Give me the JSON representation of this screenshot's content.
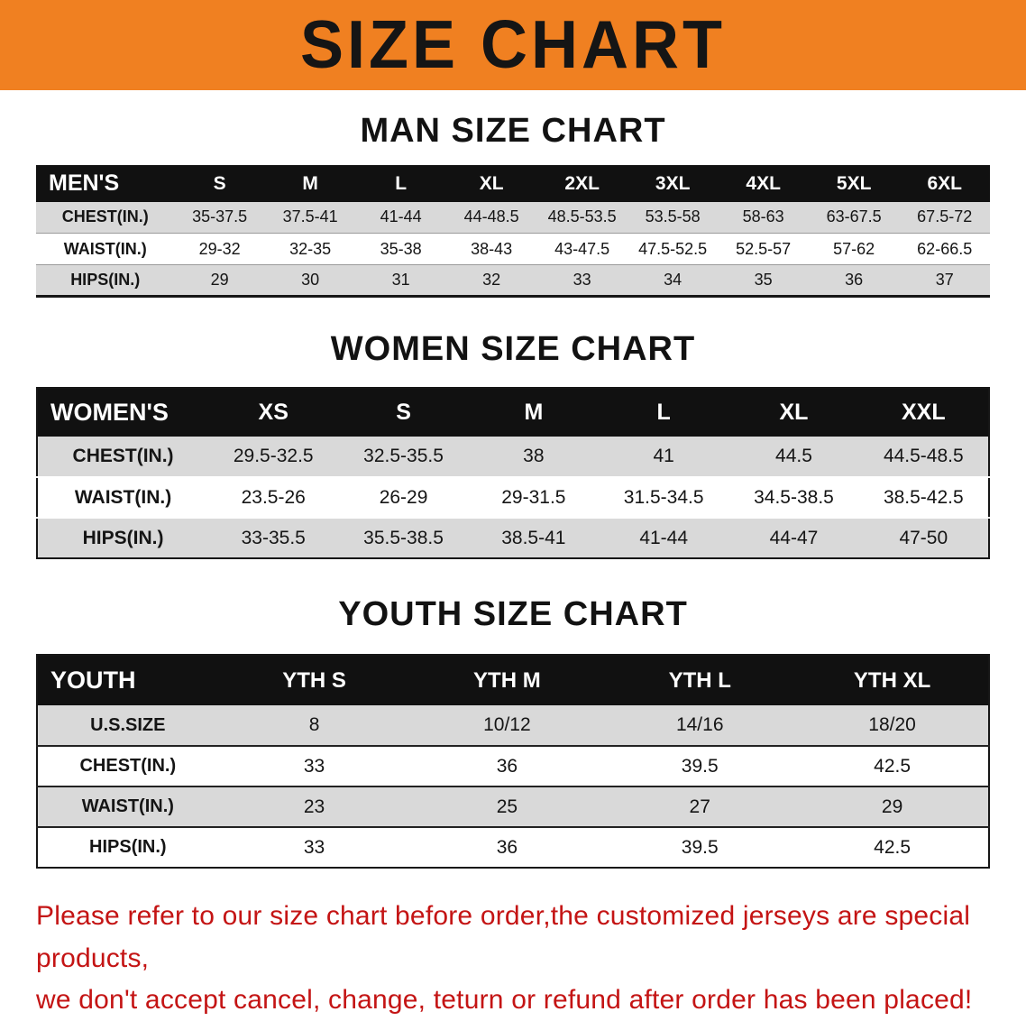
{
  "banner": {
    "title": "SIZE CHART"
  },
  "colors": {
    "banner_orange": "#F08021",
    "table_header_black": "#111111",
    "row_gray": "#D9D9D9",
    "note_red": "#C41414"
  },
  "sections": [
    {
      "heading": "MAN SIZE CHART",
      "table": {
        "header": [
          "MEN'S",
          "S",
          "M",
          "L",
          "XL",
          "2XL",
          "3XL",
          "4XL",
          "5XL",
          "6XL"
        ],
        "rows": [
          [
            "CHEST(IN.)",
            "35-37.5",
            "37.5-41",
            "41-44",
            "44-48.5",
            "48.5-53.5",
            "53.5-58",
            "58-63",
            "63-67.5",
            "67.5-72"
          ],
          [
            "WAIST(IN.)",
            "29-32",
            "32-35",
            "35-38",
            "38-43",
            "43-47.5",
            "47.5-52.5",
            "52.5-57",
            "57-62",
            "62-66.5"
          ],
          [
            "HIPS(IN.)",
            "29",
            "30",
            "31",
            "32",
            "33",
            "34",
            "35",
            "36",
            "37"
          ]
        ]
      }
    },
    {
      "heading": "WOMEN SIZE CHART",
      "table": {
        "header": [
          "WOMEN'S",
          "XS",
          "S",
          "M",
          "L",
          "XL",
          "XXL"
        ],
        "rows": [
          [
            "CHEST(IN.)",
            "29.5-32.5",
            "32.5-35.5",
            "38",
            "41",
            "44.5",
            "44.5-48.5"
          ],
          [
            "WAIST(IN.)",
            "23.5-26",
            "26-29",
            "29-31.5",
            "31.5-34.5",
            "34.5-38.5",
            "38.5-42.5"
          ],
          [
            "HIPS(IN.)",
            "33-35.5",
            "35.5-38.5",
            "38.5-41",
            "41-44",
            "44-47",
            "47-50"
          ]
        ]
      }
    },
    {
      "heading": "YOUTH SIZE CHART",
      "table": {
        "header": [
          "YOUTH",
          "YTH S",
          "YTH M",
          "YTH L",
          "YTH XL"
        ],
        "rows": [
          [
            "U.S.SIZE",
            "8",
            "10/12",
            "14/16",
            "18/20"
          ],
          [
            "CHEST(IN.)",
            "33",
            "36",
            "39.5",
            "42.5"
          ],
          [
            "WAIST(IN.)",
            "23",
            "25",
            "27",
            "29"
          ],
          [
            "HIPS(IN.)",
            "33",
            "36",
            "39.5",
            "42.5"
          ]
        ]
      }
    }
  ],
  "footer": {
    "line1": "Please refer to our size chart before order,the customized jerseys are special products,",
    "line2": "we don't accept cancel, change, teturn or refund after order has been placed!"
  }
}
